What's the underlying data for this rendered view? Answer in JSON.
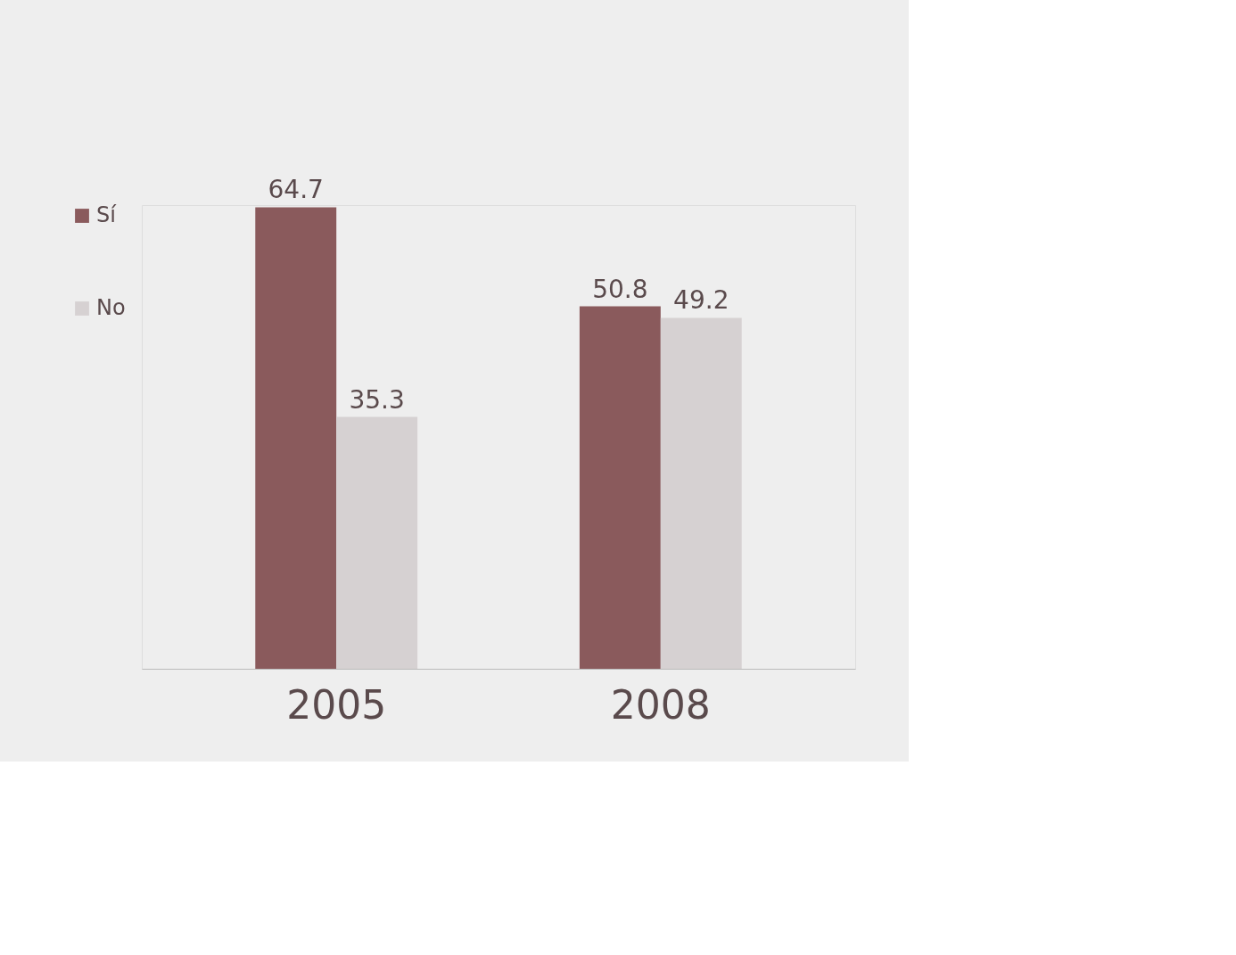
{
  "chart_data": {
    "type": "bar",
    "categories": [
      "2005",
      "2008"
    ],
    "series": [
      {
        "name": "Sí",
        "color": "#8a5a5c",
        "values": [
          64.7,
          50.8
        ]
      },
      {
        "name": "No",
        "color": "#d6d1d2",
        "values": [
          35.3,
          49.2
        ]
      }
    ],
    "data_labels": true,
    "legend": "left"
  }
}
